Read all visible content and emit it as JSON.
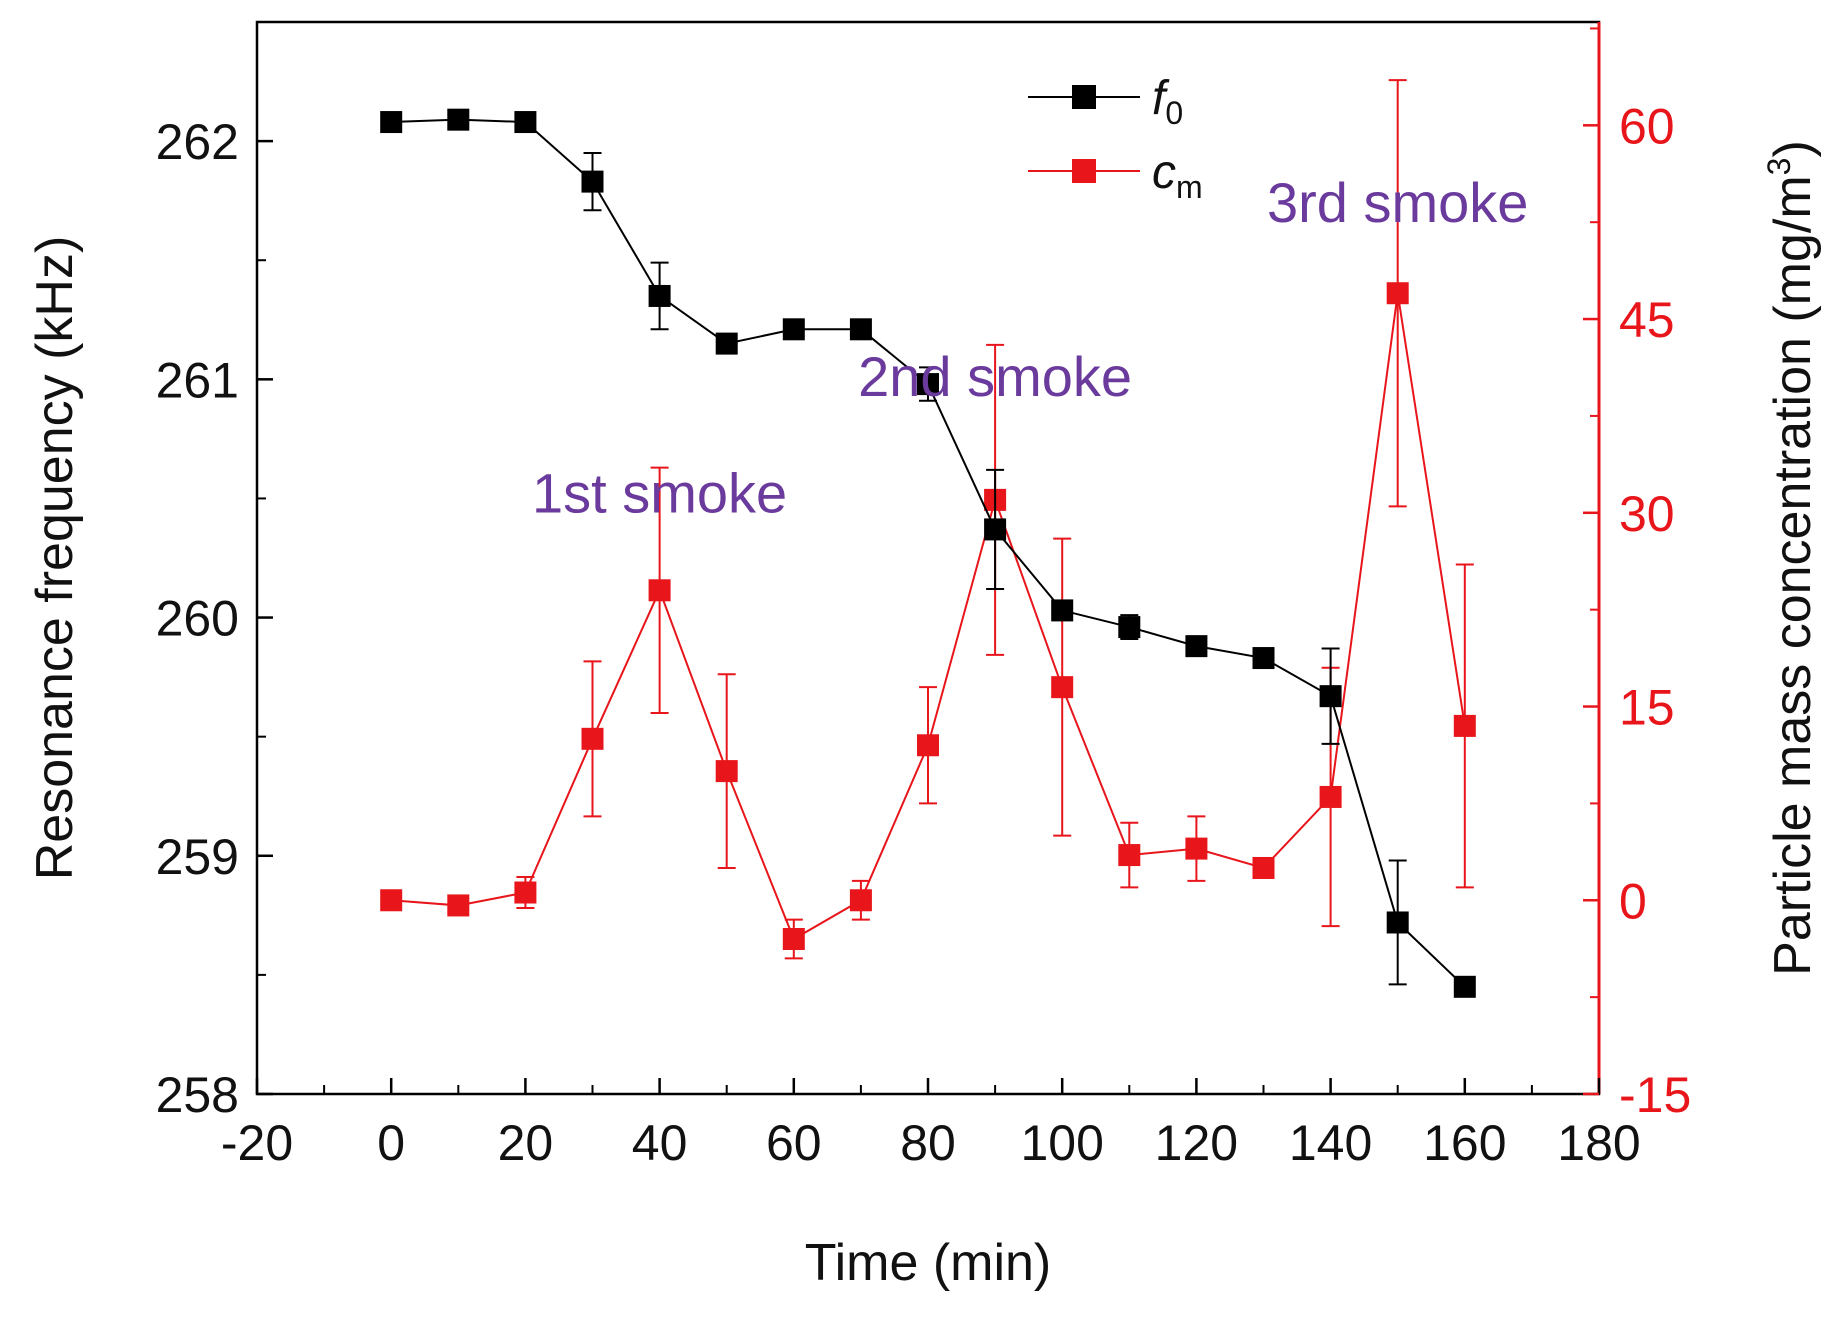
{
  "chart_data": {
    "type": "line",
    "x": [
      0,
      10,
      20,
      30,
      40,
      50,
      60,
      70,
      80,
      90,
      100,
      110,
      120,
      130,
      140,
      150,
      160
    ],
    "xlabel": "Time (min)",
    "xlim": [
      -20,
      180
    ],
    "xticks": [
      "-20",
      "0",
      "20",
      "40",
      "60",
      "80",
      "100",
      "120",
      "140",
      "160",
      "180"
    ],
    "ylabel": "Resonance frequency (kHz)",
    "ylim": [
      258,
      262.5
    ],
    "yticks": [
      "258",
      "259",
      "260",
      "261",
      "262"
    ],
    "y2label_main": "Particle mass concentration (mg/m",
    "y2label_sup": "3",
    "y2label_close": ")",
    "y2lim": [
      -15,
      68
    ],
    "y2ticks": [
      "-15",
      "0",
      "15",
      "30",
      "45",
      "60"
    ],
    "series": [
      {
        "name": "f0",
        "legend_main": "f",
        "legend_sub": "0",
        "axis": "left",
        "color": "#000000",
        "values": [
          262.08,
          262.09,
          262.08,
          261.83,
          261.35,
          261.15,
          261.21,
          261.21,
          260.98,
          260.37,
          260.03,
          259.96,
          259.88,
          259.83,
          259.67,
          258.72,
          258.45
        ],
        "errors": [
          0,
          0,
          0,
          0.12,
          0.14,
          0,
          0,
          0,
          0.07,
          0.25,
          0,
          0.05,
          0,
          0,
          0.2,
          0.26,
          0
        ]
      },
      {
        "name": "cm",
        "legend_main": "c",
        "legend_sub": "m",
        "axis": "right",
        "color": "#e8151b",
        "values": [
          0.0,
          -0.4,
          0.6,
          12.5,
          24.0,
          10.0,
          -3.0,
          0.0,
          12.0,
          31.0,
          16.5,
          3.5,
          4.0,
          2.5,
          8.0,
          47.0,
          13.5
        ],
        "errors": [
          0,
          0,
          1.2,
          6.0,
          9.5,
          7.5,
          1.5,
          1.5,
          4.5,
          12.0,
          11.5,
          2.5,
          2.5,
          0,
          10.0,
          16.5,
          12.5
        ]
      }
    ],
    "annotations": [
      {
        "text": "1st smoke",
        "x": 40,
        "y": 260.44
      },
      {
        "text": "2nd smoke",
        "x": 90,
        "y": 260.93
      },
      {
        "text": "3rd smoke",
        "x": 150,
        "y": 261.66
      }
    ],
    "legend_position": "top-center"
  }
}
